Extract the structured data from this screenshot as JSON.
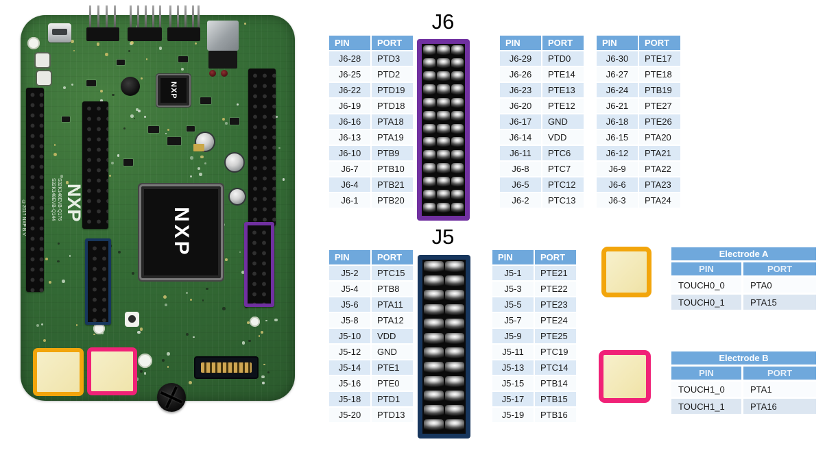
{
  "j6": {
    "title": "J6",
    "connector": {
      "cols": 3,
      "rows": 13,
      "border_color": "#7030A0"
    },
    "tables": [
      {
        "headers": [
          "PIN",
          "PORT"
        ],
        "rows": [
          [
            "J6-28",
            "PTD3"
          ],
          [
            "J6-25",
            "PTD2"
          ],
          [
            "J6-22",
            "PTD19"
          ],
          [
            "J6-19",
            "PTD18"
          ],
          [
            "J6-16",
            "PTA18"
          ],
          [
            "J6-13",
            "PTA19"
          ],
          [
            "J6-10",
            "PTB9"
          ],
          [
            "J6-7",
            "PTB10"
          ],
          [
            "J6-4",
            "PTB21"
          ],
          [
            "J6-1",
            "PTB20"
          ]
        ]
      },
      {
        "headers": [
          "PIN",
          "PORT"
        ],
        "rows": [
          [
            "J6-29",
            "PTD0"
          ],
          [
            "J6-26",
            "PTE14"
          ],
          [
            "J6-23",
            "PTE13"
          ],
          [
            "J6-20",
            "PTE12"
          ],
          [
            "J6-17",
            "GND"
          ],
          [
            "J6-14",
            "VDD"
          ],
          [
            "J6-11",
            "PTC6"
          ],
          [
            "J6-8",
            "PTC7"
          ],
          [
            "J6-5",
            "PTC12"
          ],
          [
            "J6-2",
            "PTC13"
          ]
        ]
      },
      {
        "headers": [
          "PIN",
          "PORT"
        ],
        "rows": [
          [
            "J6-30",
            "PTE17"
          ],
          [
            "J6-27",
            "PTE18"
          ],
          [
            "J6-24",
            "PTB19"
          ],
          [
            "J6-21",
            "PTE27"
          ],
          [
            "J6-18",
            "PTE26"
          ],
          [
            "J6-15",
            "PTA20"
          ],
          [
            "J6-12",
            "PTA21"
          ],
          [
            "J6-9",
            "PTA22"
          ],
          [
            "J6-6",
            "PTA23"
          ],
          [
            "J6-3",
            "PTA24"
          ]
        ]
      }
    ]
  },
  "j5": {
    "title": "J5",
    "connector": {
      "cols": 2,
      "rows": 12,
      "border_color": "#17365D"
    },
    "tables": [
      {
        "headers": [
          "PIN",
          "PORT"
        ],
        "rows": [
          [
            "J5-2",
            "PTC15"
          ],
          [
            "J5-4",
            "PTB8"
          ],
          [
            "J5-6",
            "PTA11"
          ],
          [
            "J5-8",
            "PTA12"
          ],
          [
            "J5-10",
            "VDD"
          ],
          [
            "J5-12",
            "GND"
          ],
          [
            "J5-14",
            "PTE1"
          ],
          [
            "J5-16",
            "PTE0"
          ],
          [
            "J5-18",
            "PTD1"
          ],
          [
            "J5-20",
            "PTD13"
          ]
        ]
      },
      {
        "headers": [
          "PIN",
          "PORT"
        ],
        "rows": [
          [
            "J5-1",
            "PTE21"
          ],
          [
            "J5-3",
            "PTE22"
          ],
          [
            "J5-5",
            "PTE23"
          ],
          [
            "J5-7",
            "PTE24"
          ],
          [
            "J5-9",
            "PTE25"
          ],
          [
            "J5-11",
            "PTC19"
          ],
          [
            "J5-13",
            "PTC14"
          ],
          [
            "J5-15",
            "PTB14"
          ],
          [
            "J5-17",
            "PTB15"
          ],
          [
            "J5-19",
            "PTB16"
          ]
        ]
      }
    ]
  },
  "electrodes": [
    {
      "title": "Electrode A",
      "headers": [
        "PIN",
        "PORT"
      ],
      "rows": [
        [
          "TOUCH0_0",
          "PTA0"
        ],
        [
          "TOUCH0_1",
          "PTA15"
        ]
      ],
      "swatch_border": "#F2A50C"
    },
    {
      "title": "Electrode B",
      "headers": [
        "PIN",
        "PORT"
      ],
      "rows": [
        [
          "TOUCH1_0",
          "PTA1"
        ],
        [
          "TOUCH1_1",
          "PTA16"
        ]
      ],
      "swatch_border": "#F02277"
    }
  ],
  "board": {
    "chip_label": "NXP",
    "small_chip_label": "NXP",
    "silk_logo": "NXP",
    "silk_label_1": "S32K148EVB-Q144",
    "silk_label_2": "S32K148EVB-Q176",
    "silk_copyright": "©2017 NXP B.V."
  },
  "colors": {
    "table_header": "#6FA8DC",
    "row_alt": "#DCE9F6",
    "j6_highlight": "#7030A0",
    "j5_highlight": "#17365D",
    "electrode_a": "#F2A50C",
    "electrode_b": "#F02277"
  }
}
